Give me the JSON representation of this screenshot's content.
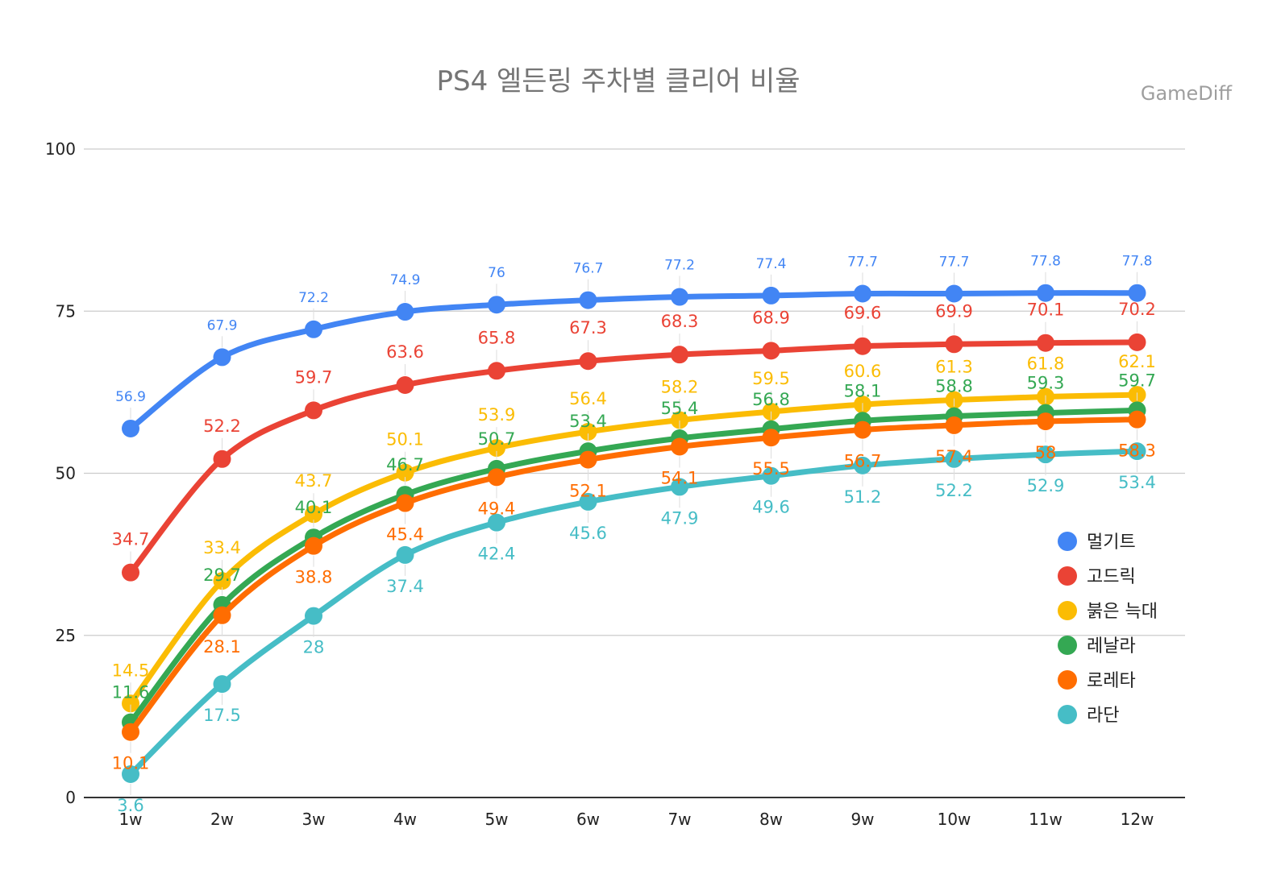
{
  "chart_data": {
    "type": "line",
    "title": "PS4 엘든링 주차별 클리어 비율",
    "watermark": "GameDiff",
    "xlabel": "",
    "ylabel": "",
    "ylim": [
      0,
      100
    ],
    "yticks": [
      0,
      25,
      50,
      75,
      100
    ],
    "grid": true,
    "legend_position": "right",
    "categories": [
      "1w",
      "2w",
      "3w",
      "4w",
      "5w",
      "6w",
      "7w",
      "8w",
      "9w",
      "10w",
      "11w",
      "12w"
    ],
    "series": [
      {
        "name": "멀기트",
        "color": "#4285F4",
        "values": [
          56.9,
          67.9,
          72.2,
          74.9,
          76,
          76.7,
          77.2,
          77.4,
          77.7,
          77.7,
          77.8,
          77.8
        ]
      },
      {
        "name": "고드릭",
        "color": "#EA4335",
        "values": [
          34.7,
          52.2,
          59.7,
          63.6,
          65.8,
          67.3,
          68.3,
          68.9,
          69.6,
          69.9,
          70.1,
          70.2
        ]
      },
      {
        "name": "붉은 늑대",
        "color": "#FBBC04",
        "values": [
          14.5,
          33.4,
          43.7,
          50.1,
          53.9,
          56.4,
          58.2,
          59.5,
          60.6,
          61.3,
          61.8,
          62.1
        ]
      },
      {
        "name": "레날라",
        "color": "#34A853",
        "values": [
          11.6,
          29.7,
          40.1,
          46.7,
          50.7,
          53.4,
          55.4,
          56.8,
          58.1,
          58.8,
          59.3,
          59.7
        ]
      },
      {
        "name": "로레타",
        "color": "#FF6D01",
        "values": [
          10.1,
          28.1,
          38.8,
          45.4,
          49.4,
          52.1,
          54.1,
          55.5,
          56.7,
          57.4,
          58,
          58.3
        ]
      },
      {
        "name": "라단",
        "color": "#46BDC6",
        "values": [
          3.6,
          17.5,
          28,
          37.4,
          42.4,
          45.6,
          47.9,
          49.6,
          51.2,
          52.2,
          52.9,
          53.4
        ]
      }
    ]
  }
}
